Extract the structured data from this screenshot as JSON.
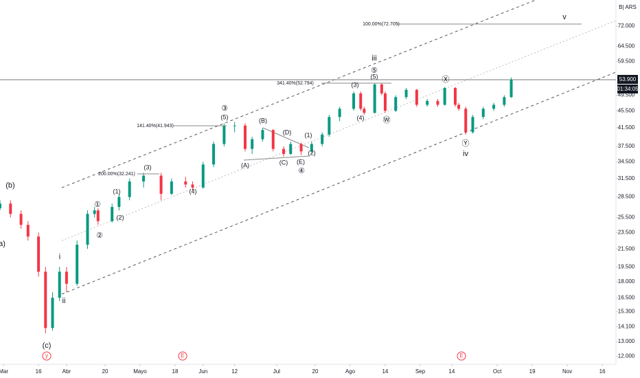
{
  "chart_data": {
    "type": "candlestick",
    "log_scale": true,
    "currency": "B| ARS",
    "last_price_label": "53.900",
    "last_price": 53.9,
    "countdown": "01:34:05",
    "colors": {
      "up": "#089981",
      "down": "#f23645"
    },
    "x": [
      0,
      3,
      6,
      8,
      11,
      13,
      15,
      17,
      19,
      22,
      25,
      27,
      28,
      32,
      34,
      37,
      41,
      46,
      49,
      53,
      55,
      58,
      61,
      64,
      67,
      70,
      72,
      75,
      78,
      81,
      83,
      86,
      89,
      92,
      94,
      97,
      101,
      103,
      104,
      107,
      109,
      110,
      113,
      116,
      119,
      122,
      125,
      127,
      130,
      131,
      133,
      135,
      138,
      141,
      144,
      146
    ],
    "open": [
      26.8,
      27.5,
      26,
      24.5,
      23,
      19,
      14,
      16.5,
      19,
      17.8,
      22,
      26,
      26.5,
      25,
      27,
      28.5,
      31,
      32,
      29,
      31,
      30.5,
      30,
      34,
      38,
      42,
      42,
      37,
      39,
      41,
      37,
      36,
      38,
      36.5,
      38,
      40,
      44,
      46,
      50,
      46,
      45,
      52.5,
      50,
      45.5,
      49,
      51,
      47,
      48,
      47,
      51.5,
      47,
      46,
      40.5,
      44,
      46,
      47,
      49
    ],
    "high": [
      28,
      28,
      26.5,
      25,
      23.5,
      19.5,
      17,
      19.5,
      19.5,
      22.5,
      26.5,
      27,
      26.8,
      27.5,
      29,
      31.5,
      32.5,
      32.5,
      31.5,
      31.8,
      31,
      34.5,
      38.5,
      42.5,
      42.8,
      42.5,
      39.5,
      41.5,
      41.2,
      37.5,
      38.5,
      38.3,
      38.5,
      40.5,
      44.5,
      46.5,
      50.5,
      50.5,
      46.5,
      52.8,
      53,
      50.5,
      49.5,
      51.5,
      51.2,
      48.5,
      48.5,
      51.8,
      51.8,
      47.5,
      46.5,
      44.5,
      46.5,
      47.5,
      49.5,
      54.5
    ],
    "low": [
      26.5,
      25.5,
      24,
      22.5,
      18.5,
      13.6,
      13.8,
      16.2,
      17,
      17.6,
      21.5,
      25.5,
      24.5,
      24.8,
      26.5,
      28,
      30,
      28,
      28.8,
      30,
      29.5,
      29.8,
      33.5,
      37.5,
      40.5,
      36.5,
      36,
      38.5,
      36.5,
      35.5,
      35.8,
      35.8,
      36.2,
      37.5,
      39.5,
      43,
      45.5,
      45.5,
      44.5,
      44.8,
      49.5,
      45,
      45.2,
      48.5,
      46.5,
      46.5,
      46.5,
      46.8,
      46.5,
      45.5,
      40,
      40.2,
      43.5,
      45.5,
      46.5,
      48.8
    ],
    "close": [
      27.5,
      26,
      24.5,
      23,
      19,
      14,
      16.5,
      19,
      17.8,
      22,
      26,
      26.5,
      25,
      27,
      28.5,
      31,
      32,
      29,
      31,
      30.5,
      30,
      34,
      38,
      42,
      42,
      37,
      39,
      41,
      37,
      36,
      38,
      36.5,
      38,
      40,
      44,
      46,
      50,
      46,
      45,
      52.5,
      50,
      45.5,
      49,
      51,
      47,
      48,
      47,
      51.5,
      47,
      46,
      40.5,
      44,
      46,
      47,
      49,
      53.9
    ],
    "xlim": [
      0,
      175.9
    ],
    "xticks": [
      {
        "value": 1,
        "label": "Mar"
      },
      {
        "value": 11,
        "label": "16"
      },
      {
        "value": 19,
        "label": "Abr"
      },
      {
        "value": 30,
        "label": "20"
      },
      {
        "value": 40,
        "label": "Mayo"
      },
      {
        "value": 50,
        "label": "18"
      },
      {
        "value": 58,
        "label": "Jun"
      },
      {
        "value": 67,
        "label": "12"
      },
      {
        "value": 79,
        "label": "Jul"
      },
      {
        "value": 90,
        "label": "20"
      },
      {
        "value": 100,
        "label": "Ago"
      },
      {
        "value": 110,
        "label": "14"
      },
      {
        "value": 120,
        "label": "Sep"
      },
      {
        "value": 129,
        "label": "14"
      },
      {
        "value": 142,
        "label": "Oct"
      },
      {
        "value": 152,
        "label": "19"
      },
      {
        "value": 162,
        "label": "Nov"
      },
      {
        "value": 172,
        "label": "16"
      }
    ],
    "ylim": [
      11.5,
      83
    ],
    "yticks": [
      {
        "value": 72,
        "label": "72.000"
      },
      {
        "value": 64.5,
        "label": "64.500"
      },
      {
        "value": 59.5,
        "label": "59.500"
      },
      {
        "value": 49.5,
        "label": "49.500"
      },
      {
        "value": 45.5,
        "label": "45.500"
      },
      {
        "value": 41.5,
        "label": "41.500"
      },
      {
        "value": 37.5,
        "label": "37.500"
      },
      {
        "value": 34.5,
        "label": "34.500"
      },
      {
        "value": 31.5,
        "label": "31.500"
      },
      {
        "value": 28.5,
        "label": "28.500"
      },
      {
        "value": 25.5,
        "label": "25.500"
      },
      {
        "value": 23.5,
        "label": "23.500"
      },
      {
        "value": 21.5,
        "label": "21.500"
      },
      {
        "value": 19.5,
        "label": "19.500"
      },
      {
        "value": 18,
        "label": "18.000"
      },
      {
        "value": 16.5,
        "label": "16.500"
      },
      {
        "value": 15.3,
        "label": "15.300"
      },
      {
        "value": 14.1,
        "label": "14.100"
      },
      {
        "value": 13,
        "label": "13.000"
      },
      {
        "value": 12,
        "label": "12.000"
      }
    ],
    "annotations": [
      "(b)",
      "a)",
      "(c)",
      "i",
      "ii",
      "①",
      "②",
      "(1)",
      "(2)",
      "(3)",
      "(4)",
      "③",
      "(5)",
      "(A)",
      "(B)",
      "(C)",
      "(D)",
      "(E)",
      "④",
      "(1)",
      "(2)",
      "(3)",
      "(4)",
      "iii",
      "⑤",
      "(5)",
      "Ⓦ",
      "Ⓧ",
      "Ⓨ",
      "iv",
      "v"
    ],
    "fib_labels": [
      "100.00%(72.705)",
      "341.40%(52.794)",
      "141.40%(41.943)",
      "200.00%(32.241)"
    ],
    "events": [
      "y",
      "E",
      "E"
    ]
  }
}
